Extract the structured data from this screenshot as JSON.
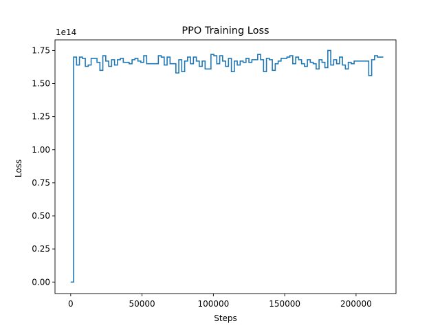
{
  "chart_data": {
    "type": "line",
    "style": "step",
    "title": "PPO Training Loss",
    "xlabel": "Steps",
    "ylabel": "Loss",
    "y_offset_text": "1e14",
    "y_scale_factor": 100000000000000.0,
    "xlim": [
      -11000,
      228000
    ],
    "ylim": [
      -0.087,
      1.83
    ],
    "xticks": [
      0,
      50000,
      100000,
      150000,
      200000
    ],
    "xtick_labels": [
      "0",
      "50000",
      "100000",
      "150000",
      "200000"
    ],
    "yticks": [
      0.0,
      0.25,
      0.5,
      0.75,
      1.0,
      1.25,
      1.5,
      1.75
    ],
    "ytick_labels": [
      "0.00",
      "0.25",
      "0.50",
      "0.75",
      "1.00",
      "1.25",
      "1.50",
      "1.75"
    ],
    "grid": false,
    "line_color": "#1f77b4",
    "series": [
      {
        "x": [
          0,
          2048,
          4096,
          6144,
          8192,
          10240,
          12288,
          14336,
          16384,
          18432,
          20480,
          22528,
          24576,
          26624,
          28672,
          30720,
          32768,
          34816,
          36864,
          38912,
          40960,
          43008,
          45056,
          47104,
          49152,
          51200,
          53248,
          55296,
          57344,
          59392,
          61440,
          63488,
          65536,
          67584,
          69632,
          71680,
          73728,
          75776,
          77824,
          79872,
          81920,
          83968,
          86016,
          88064,
          90112,
          92160,
          94208,
          96256,
          98304,
          100352,
          102400,
          104448,
          106496,
          108544,
          110592,
          112640,
          114688,
          116736,
          118784,
          120832,
          122880,
          124928,
          126976,
          129024,
          131072,
          133120,
          135168,
          137216,
          139264,
          141312,
          143360,
          145408,
          147456,
          149504,
          151552,
          153600,
          155648,
          157696,
          159744,
          161792,
          163840,
          165888,
          167936,
          169984,
          172032,
          174080,
          176128,
          178176,
          180224,
          182272,
          184320,
          186368,
          188416,
          190464,
          192512,
          194560,
          196608,
          198656,
          200704,
          202752,
          204800,
          206848,
          208896,
          210944,
          212992,
          215040,
          217088
        ],
        "y": [
          0.0,
          1.7,
          1.64,
          1.7,
          1.69,
          1.63,
          1.64,
          1.69,
          1.69,
          1.66,
          1.6,
          1.71,
          1.67,
          1.63,
          1.68,
          1.64,
          1.68,
          1.69,
          1.66,
          1.66,
          1.65,
          1.68,
          1.69,
          1.67,
          1.66,
          1.71,
          1.65,
          1.65,
          1.65,
          1.65,
          1.71,
          1.7,
          1.64,
          1.7,
          1.65,
          1.65,
          1.58,
          1.68,
          1.59,
          1.67,
          1.7,
          1.65,
          1.7,
          1.67,
          1.63,
          1.67,
          1.61,
          1.61,
          1.72,
          1.71,
          1.65,
          1.71,
          1.67,
          1.63,
          1.69,
          1.59,
          1.67,
          1.64,
          1.67,
          1.66,
          1.69,
          1.66,
          1.68,
          1.68,
          1.72,
          1.68,
          1.59,
          1.69,
          1.68,
          1.6,
          1.65,
          1.67,
          1.69,
          1.69,
          1.7,
          1.71,
          1.65,
          1.7,
          1.68,
          1.65,
          1.63,
          1.68,
          1.66,
          1.65,
          1.61,
          1.68,
          1.66,
          1.62,
          1.75,
          1.64,
          1.68,
          1.65,
          1.7,
          1.64,
          1.61,
          1.66,
          1.65,
          1.67,
          1.67,
          1.67,
          1.67,
          1.67,
          1.56,
          1.68,
          1.71,
          1.7,
          1.7
        ]
      }
    ]
  }
}
